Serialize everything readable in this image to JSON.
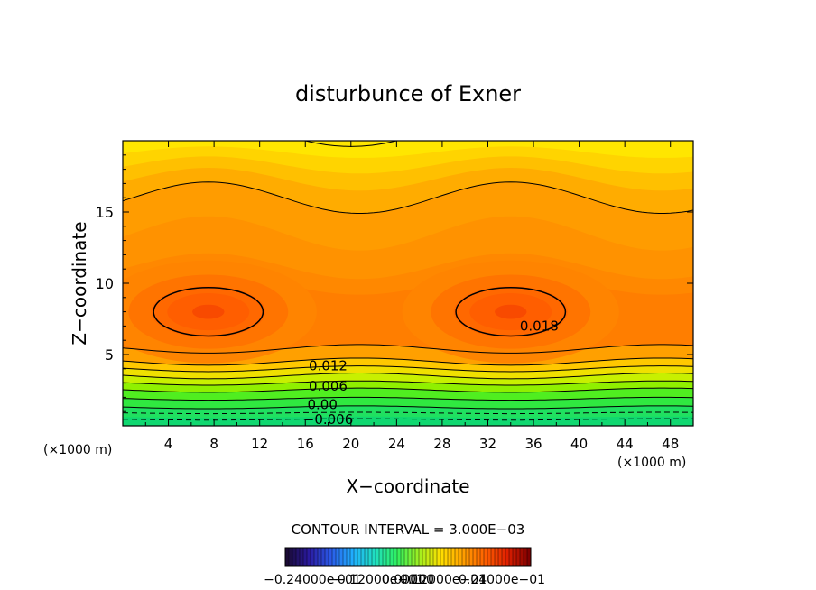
{
  "chart_data": {
    "type": "contour",
    "title": "disturbunce of Exner",
    "xlabel": "X−coordinate",
    "ylabel": "Z−coordinate",
    "x_unit": "(×1000 m)",
    "y_unit": "(×1000 m)",
    "xlim": [
      0,
      50
    ],
    "ylim": [
      0,
      20
    ],
    "x_ticks": [
      4,
      8,
      12,
      16,
      20,
      24,
      28,
      32,
      36,
      40,
      44,
      48
    ],
    "y_ticks": [
      5,
      10,
      15
    ],
    "x_tick_labels": [
      "4",
      "8",
      "12",
      "16",
      "20",
      "24",
      "28",
      "32",
      "36",
      "40",
      "44",
      "48"
    ],
    "y_tick_labels": [
      "5",
      "10",
      "15"
    ],
    "contour_interval_text": "CONTOUR INTERVAL = 3.000E−03",
    "contour_interval": 0.003,
    "maxima": [
      {
        "x": 7.5,
        "z": 8.0
      },
      {
        "x": 34.0,
        "z": 8.0
      }
    ],
    "contour_labels": [
      {
        "text": "0.018",
        "x": 36.5,
        "z": 7.0,
        "value": 0.018
      },
      {
        "text": "0.012",
        "x": 18.0,
        "z": 4.2,
        "value": 0.012
      },
      {
        "text": "0.006",
        "x": 18.0,
        "z": 2.8,
        "value": 0.006
      },
      {
        "text": "0.00",
        "x": 17.5,
        "z": 1.5,
        "value": 0.0
      },
      {
        "text": "−0.006",
        "x": 18.0,
        "z": 0.45,
        "value": -0.006
      }
    ],
    "colorbar_labels": [
      "−0.24000e−01",
      "−0.12000e−01",
      "0.00000",
      "0.12000e−01",
      "0.24000e−01"
    ],
    "colorbar_range": [
      -0.024,
      0.024
    ],
    "colormap": [
      "#1a0a35",
      "#2a1aa0",
      "#2a5ae8",
      "#20b0ff",
      "#20e0c0",
      "#30f060",
      "#a0f020",
      "#ffe000",
      "#ffa000",
      "#ff6000",
      "#e02000",
      "#800000"
    ]
  }
}
